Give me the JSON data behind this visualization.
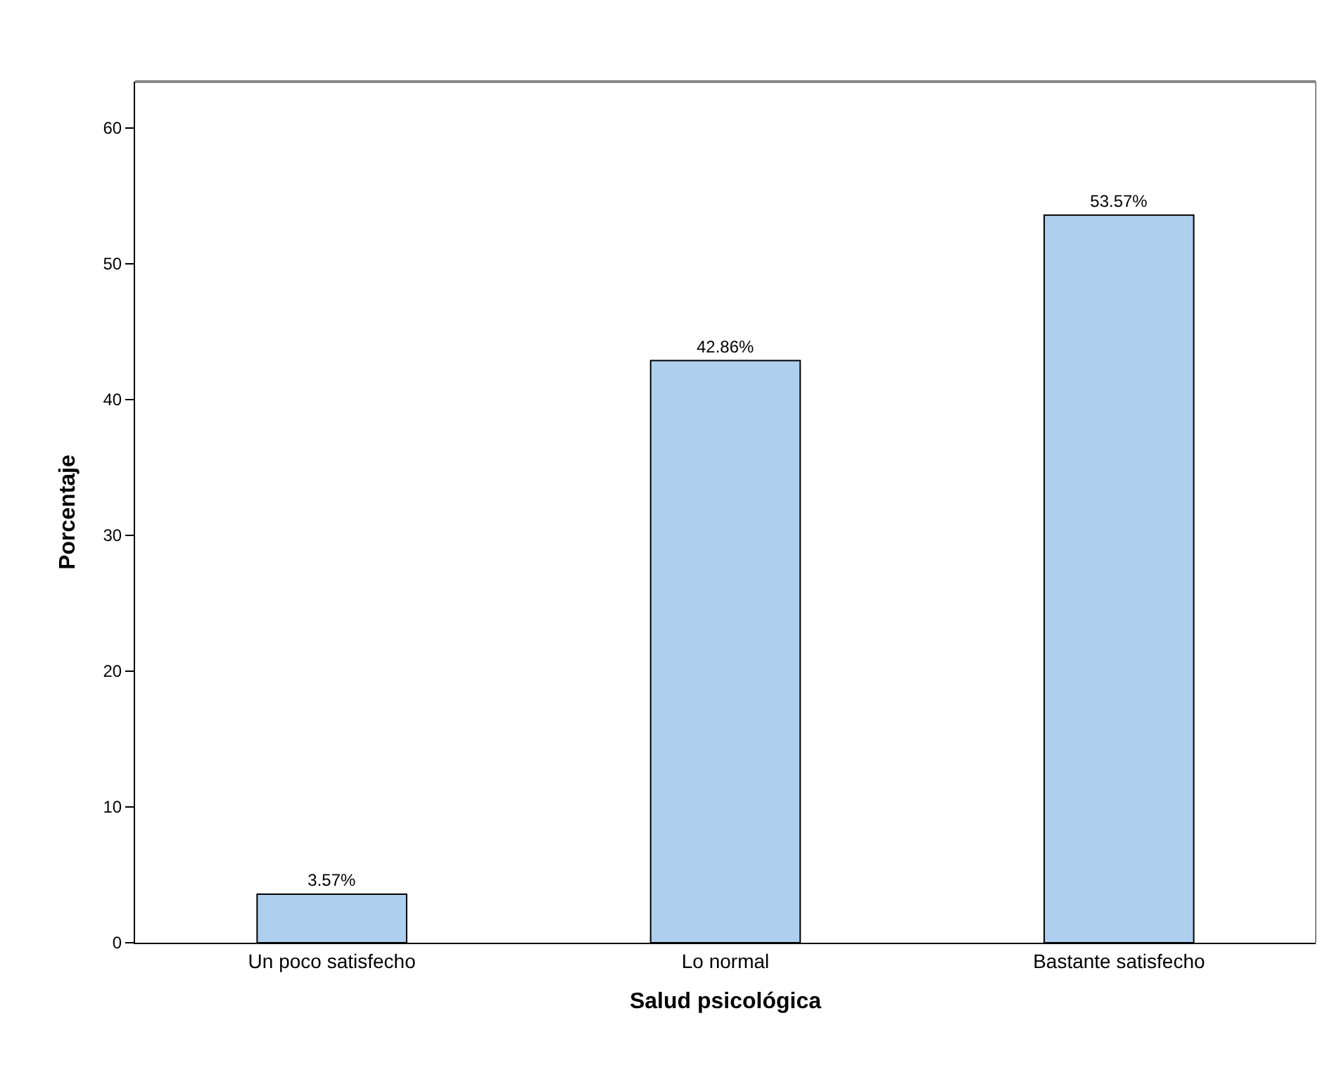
{
  "chart_data": {
    "type": "bar",
    "xlabel": "Salud psicológica",
    "ylabel": "Porcentaje",
    "categories": [
      "Un poco satisfecho",
      "Lo normal",
      "Bastante satisfecho"
    ],
    "values": [
      3.57,
      42.86,
      53.57
    ],
    "color": "#aed0ee",
    "value_labels": [
      "3.57%",
      "42.86%",
      "53.57%"
    ],
    "ylim": [
      0,
      63.4
    ],
    "yticks": [
      0,
      10,
      20,
      30,
      40,
      50,
      60
    ]
  }
}
